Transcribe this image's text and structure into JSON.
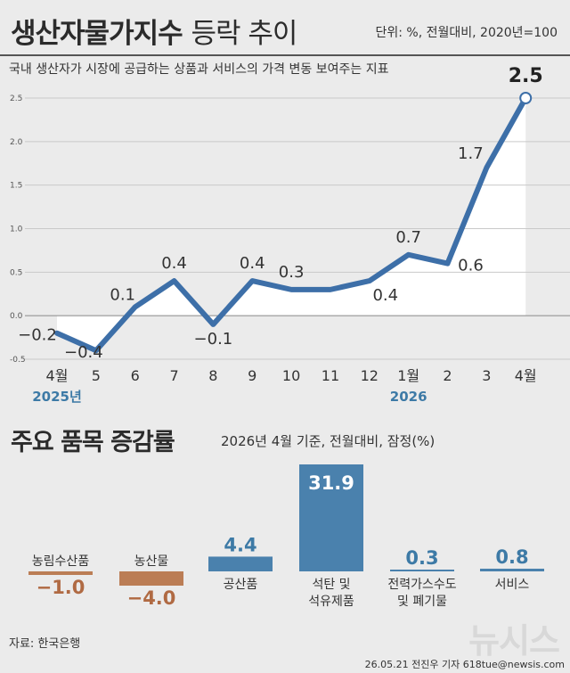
{
  "header": {
    "title_bold": "생산자물가지수",
    "title_light": "등락 추이",
    "unit": "단위: %, 전월대비, 2020년=100",
    "subtitle": "국내 생산자가 시장에 공급하는 상품과 서비스의 가격 변동 보여주는 지표"
  },
  "section2": {
    "title": "주요 품목 증감률",
    "subtitle": "2026년 4월 기준, 전월대비, 잠정(%)"
  },
  "footer": {
    "source": "자료: 한국은행",
    "brand": "뉴시스",
    "credit": "26.05.21 전진우 기자 618tue@newsis.com"
  },
  "colors": {
    "line": "#3d6fa8",
    "bar_positive": "#4a81ad",
    "bar_negative": "#bb7d55",
    "positive_text": "#3d7aa6",
    "negative_text": "#b06a43"
  },
  "chart_data": [
    {
      "type": "line",
      "title": "생산자물가지수 등락 추이",
      "x": [
        "4월",
        "5",
        "6",
        "7",
        "8",
        "9",
        "10",
        "11",
        "12",
        "1월",
        "2",
        "3",
        "4월"
      ],
      "year_labels": [
        {
          "index": 0,
          "label": "2025년"
        },
        {
          "index": 9,
          "label": "2026"
        }
      ],
      "series": [
        {
          "values": [
            -0.2,
            -0.4,
            0.1,
            0.4,
            -0.1,
            0.4,
            0.3,
            0.3,
            0.4,
            0.7,
            0.6,
            1.7,
            2.5
          ]
        }
      ],
      "value_labels": [
        "−0.2",
        "−0.4",
        "0.1",
        "0.4",
        "−0.1",
        "0.4",
        "0.3",
        "",
        "0.4",
        "0.7",
        "0.6",
        "1.7",
        "2.5"
      ],
      "yticks": [
        -0.5,
        0.0,
        0.5,
        1.0,
        1.5,
        2.0,
        2.5
      ],
      "ytick_labels": [
        "-0.5",
        "0.0",
        "0.5",
        "1.0",
        "1.5",
        "2.0",
        "2.5"
      ],
      "ylim": [
        -0.5,
        2.5
      ],
      "grid": true
    },
    {
      "type": "bar",
      "title": "주요 품목 증감률",
      "categories": [
        [
          "농림수산품"
        ],
        [
          "농산물"
        ],
        [
          "공산품"
        ],
        [
          "석탄 및",
          "석유제품"
        ],
        [
          "전력가스수도",
          "및 폐기물"
        ],
        [
          "서비스"
        ]
      ],
      "values": [
        -1.0,
        -4.0,
        4.4,
        31.9,
        0.3,
        0.8
      ],
      "value_labels": [
        "−1.0",
        "−4.0",
        "4.4",
        "31.9",
        "0.3",
        "0.8"
      ]
    }
  ]
}
